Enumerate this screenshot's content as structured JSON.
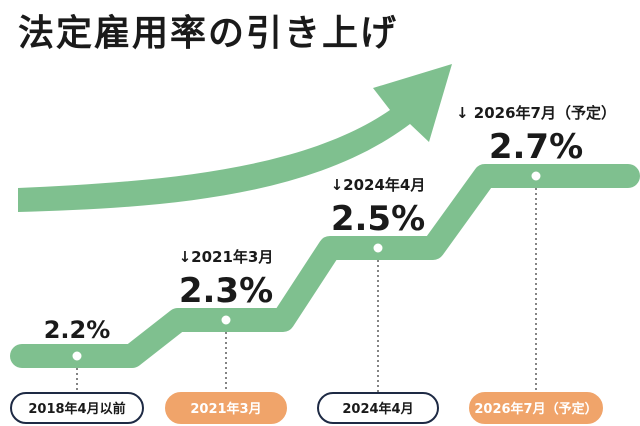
{
  "title": "法定雇用率の引き上げ",
  "colors": {
    "line": "#7fc08f",
    "accent": "#f0a46a",
    "dark": "#1e2a44",
    "text": "#1a1a1a"
  },
  "chart_data": {
    "type": "line",
    "style": "step",
    "title": "法定雇用率の引き上げ",
    "unit": "%",
    "categories": [
      "2018年4月以前",
      "2021年3月",
      "2024年4月",
      "2026年7月（予定）"
    ],
    "values": [
      2.2,
      2.3,
      2.5,
      2.7
    ],
    "value_labels": [
      "2.2%",
      "2.3%",
      "2.5%",
      "2.7%"
    ],
    "date_labels": [
      "",
      "↓2021年3月",
      "↓2024年4月",
      "↓ 2026年7月（予定）"
    ],
    "pill_styles": [
      "outline",
      "filled",
      "outline",
      "filled"
    ],
    "ylim": [
      2.1,
      2.75
    ],
    "grid": false,
    "legend": "none"
  }
}
